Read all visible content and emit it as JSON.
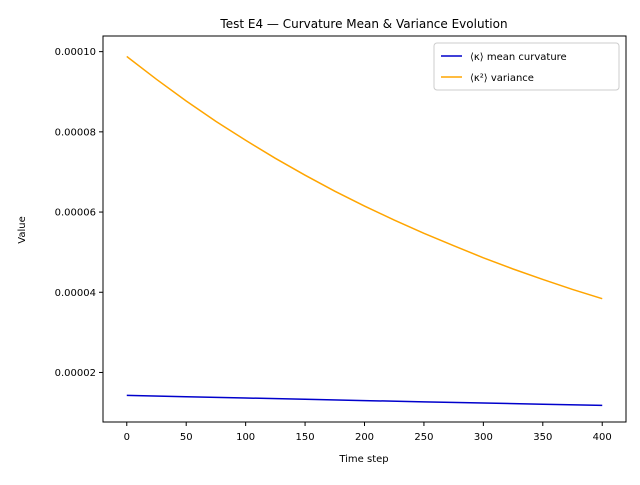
{
  "chart_data": {
    "type": "line",
    "title": "Test E4 — Curvature Mean & Variance Evolution",
    "xlabel": "Time step",
    "ylabel": "Value",
    "xlim": [
      -20,
      420
    ],
    "ylim": [
      7.65e-06,
      0.0001039
    ],
    "xticks": [
      0,
      50,
      100,
      150,
      200,
      250,
      300,
      350,
      400
    ],
    "xtick_labels": [
      "0",
      "50",
      "100",
      "150",
      "200",
      "250",
      "300",
      "350",
      "400"
    ],
    "yticks": [
      2e-05,
      4e-05,
      6e-05,
      8e-05,
      0.0001
    ],
    "ytick_labels": [
      "0.00002",
      "0.00004",
      "0.00006",
      "0.00008",
      "0.00010"
    ],
    "grid": false,
    "legend_position": "top-right",
    "series": [
      {
        "name": "⟨κ⟩ mean curvature",
        "color": "#0000cc",
        "x": [
          0,
          50,
          100,
          150,
          200,
          250,
          300,
          350,
          400
        ],
        "y": [
          1.43e-05,
          1.396e-05,
          1.364e-05,
          1.331e-05,
          1.299e-05,
          1.268e-05,
          1.238e-05,
          1.208e-05,
          1.18e-05
        ]
      },
      {
        "name": "⟨κ²⟩ variance",
        "color": "#ffa500",
        "x": [
          0,
          25,
          50,
          75,
          100,
          125,
          150,
          175,
          200,
          225,
          250,
          275,
          300,
          325,
          350,
          375,
          400
        ],
        "y": [
          9.88e-05,
          9.31e-05,
          8.77e-05,
          8.26e-05,
          7.79e-05,
          7.34e-05,
          6.92e-05,
          6.52e-05,
          6.15e-05,
          5.8e-05,
          5.47e-05,
          5.16e-05,
          4.86e-05,
          4.58e-05,
          4.32e-05,
          4.07e-05,
          3.84e-05
        ]
      }
    ]
  }
}
